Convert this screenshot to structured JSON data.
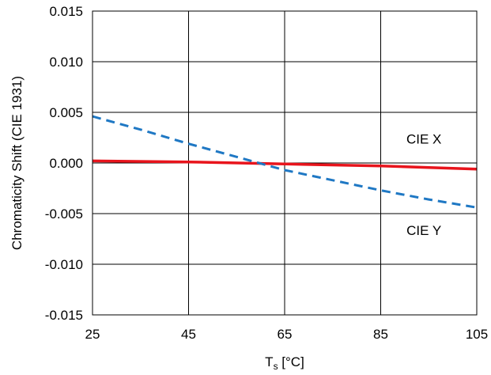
{
  "chart_data": {
    "type": "line",
    "title": "",
    "xlabel_main": "T",
    "xlabel_sub": "s",
    "xlabel_unit": " [°C]",
    "ylabel": "Chromaticity Shift (CIE 1931)",
    "xlim": [
      25,
      105
    ],
    "ylim": [
      -0.015,
      0.015
    ],
    "x_ticks": [
      25,
      45,
      65,
      85,
      105
    ],
    "x_tick_labels": [
      "25",
      "45",
      "65",
      "85",
      "105"
    ],
    "y_ticks": [
      -0.015,
      -0.01,
      -0.005,
      0.0,
      0.005,
      0.01,
      0.015
    ],
    "y_tick_labels": [
      "-0.015",
      "-0.010",
      "-0.005",
      "0.000",
      "0.005",
      "0.010",
      "0.015"
    ],
    "grid": true,
    "series": [
      {
        "name": "CIE X",
        "color": "#e8141c",
        "style": "solid",
        "x": [
          25,
          45,
          65,
          85,
          105
        ],
        "values": [
          0.0002,
          0.0001,
          -0.0001,
          -0.0003,
          -0.0006
        ]
      },
      {
        "name": "CIE Y",
        "color": "#1f78c4",
        "style": "dashed",
        "x": [
          25,
          35,
          45,
          55,
          65,
          75,
          85,
          95,
          105
        ],
        "values": [
          0.0046,
          0.0033,
          0.0019,
          0.0006,
          -0.0007,
          -0.0017,
          -0.0027,
          -0.0036,
          -0.0044
        ]
      }
    ],
    "annotations": [
      {
        "text": "CIE X",
        "x": 94,
        "y": 0.0019
      },
      {
        "text": "CIE Y",
        "x": 94,
        "y": -0.0071
      }
    ]
  }
}
